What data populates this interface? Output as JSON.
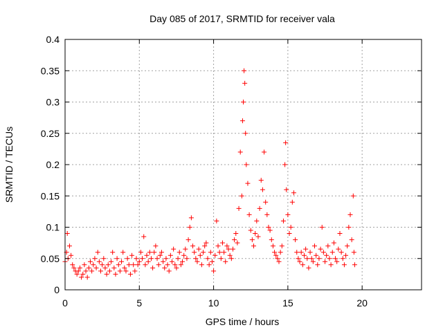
{
  "colors": {
    "series": "#ff0000",
    "axis": "#000000",
    "grid": "#a0a0a0",
    "background": "#ffffff"
  },
  "chart_data": {
    "type": "scatter",
    "title": "Day 085 of 2017, SRMTID for receiver vala",
    "xlabel": "GPS time / hours",
    "ylabel": "SRMTID / TECUs",
    "xlim": [
      0,
      24
    ],
    "ylim": [
      0,
      0.4
    ],
    "grid": true,
    "marker": "+",
    "x_ticks": [
      0,
      5,
      10,
      15,
      20
    ],
    "x_tick_labels": [
      "0",
      "5",
      "10",
      "15",
      "20"
    ],
    "y_ticks": [
      0,
      0.05,
      0.1,
      0.15,
      0.2,
      0.25,
      0.3,
      0.35,
      0.4
    ],
    "y_tick_labels": [
      "0",
      "0.05",
      "0.1",
      "0.15",
      "0.2",
      "0.25",
      "0.3",
      "0.35",
      "0.4"
    ],
    "series": [
      {
        "name": "SRMTID",
        "points": [
          [
            0.0,
            0.045
          ],
          [
            0.1,
            0.06
          ],
          [
            0.15,
            0.09
          ],
          [
            0.2,
            0.05
          ],
          [
            0.3,
            0.07
          ],
          [
            0.4,
            0.055
          ],
          [
            0.5,
            0.04
          ],
          [
            0.6,
            0.035
          ],
          [
            0.7,
            0.03
          ],
          [
            0.8,
            0.025
          ],
          [
            0.9,
            0.03
          ],
          [
            1.0,
            0.035
          ],
          [
            1.1,
            0.02
          ],
          [
            1.2,
            0.025
          ],
          [
            1.3,
            0.04
          ],
          [
            1.4,
            0.03
          ],
          [
            1.5,
            0.02
          ],
          [
            1.6,
            0.035
          ],
          [
            1.7,
            0.045
          ],
          [
            1.8,
            0.03
          ],
          [
            1.9,
            0.04
          ],
          [
            2.0,
            0.05
          ],
          [
            2.1,
            0.035
          ],
          [
            2.2,
            0.06
          ],
          [
            2.3,
            0.045
          ],
          [
            2.4,
            0.03
          ],
          [
            2.5,
            0.04
          ],
          [
            2.6,
            0.05
          ],
          [
            2.7,
            0.035
          ],
          [
            2.8,
            0.025
          ],
          [
            2.9,
            0.04
          ],
          [
            3.0,
            0.03
          ],
          [
            3.1,
            0.045
          ],
          [
            3.2,
            0.06
          ],
          [
            3.3,
            0.035
          ],
          [
            3.4,
            0.025
          ],
          [
            3.5,
            0.05
          ],
          [
            3.6,
            0.04
          ],
          [
            3.7,
            0.03
          ],
          [
            3.8,
            0.045
          ],
          [
            3.9,
            0.06
          ],
          [
            4.0,
            0.035
          ],
          [
            4.1,
            0.03
          ],
          [
            4.2,
            0.05
          ],
          [
            4.3,
            0.04
          ],
          [
            4.4,
            0.025
          ],
          [
            4.5,
            0.055
          ],
          [
            4.6,
            0.04
          ],
          [
            4.7,
            0.03
          ],
          [
            4.8,
            0.05
          ],
          [
            4.9,
            0.04
          ],
          [
            5.0,
            0.045
          ],
          [
            5.1,
            0.06
          ],
          [
            5.2,
            0.05
          ],
          [
            5.3,
            0.085
          ],
          [
            5.4,
            0.04
          ],
          [
            5.5,
            0.055
          ],
          [
            5.6,
            0.045
          ],
          [
            5.7,
            0.06
          ],
          [
            5.8,
            0.05
          ],
          [
            5.9,
            0.035
          ],
          [
            6.0,
            0.06
          ],
          [
            6.1,
            0.07
          ],
          [
            6.2,
            0.05
          ],
          [
            6.3,
            0.04
          ],
          [
            6.4,
            0.055
          ],
          [
            6.5,
            0.06
          ],
          [
            6.6,
            0.045
          ],
          [
            6.7,
            0.035
          ],
          [
            6.8,
            0.05
          ],
          [
            6.9,
            0.04
          ],
          [
            7.0,
            0.03
          ],
          [
            7.1,
            0.055
          ],
          [
            7.2,
            0.045
          ],
          [
            7.3,
            0.065
          ],
          [
            7.4,
            0.04
          ],
          [
            7.5,
            0.035
          ],
          [
            7.6,
            0.05
          ],
          [
            7.7,
            0.06
          ],
          [
            7.8,
            0.04
          ],
          [
            7.9,
            0.045
          ],
          [
            8.0,
            0.055
          ],
          [
            8.1,
            0.065
          ],
          [
            8.2,
            0.05
          ],
          [
            8.3,
            0.08
          ],
          [
            8.4,
            0.1
          ],
          [
            8.5,
            0.115
          ],
          [
            8.6,
            0.07
          ],
          [
            8.7,
            0.06
          ],
          [
            8.8,
            0.05
          ],
          [
            8.9,
            0.045
          ],
          [
            9.0,
            0.065
          ],
          [
            9.1,
            0.055
          ],
          [
            9.2,
            0.04
          ],
          [
            9.3,
            0.06
          ],
          [
            9.4,
            0.07
          ],
          [
            9.5,
            0.075
          ],
          [
            9.6,
            0.05
          ],
          [
            9.7,
            0.04
          ],
          [
            9.8,
            0.06
          ],
          [
            9.9,
            0.045
          ],
          [
            10.0,
            0.03
          ],
          [
            10.1,
            0.055
          ],
          [
            10.2,
            0.11
          ],
          [
            10.3,
            0.07
          ],
          [
            10.4,
            0.06
          ],
          [
            10.5,
            0.05
          ],
          [
            10.6,
            0.075
          ],
          [
            10.7,
            0.06
          ],
          [
            10.8,
            0.045
          ],
          [
            10.9,
            0.07
          ],
          [
            11.0,
            0.065
          ],
          [
            11.1,
            0.055
          ],
          [
            11.2,
            0.05
          ],
          [
            11.3,
            0.065
          ],
          [
            11.4,
            0.08
          ],
          [
            11.5,
            0.09
          ],
          [
            11.6,
            0.075
          ],
          [
            11.7,
            0.13
          ],
          [
            11.8,
            0.22
          ],
          [
            11.9,
            0.15
          ],
          [
            11.95,
            0.27
          ],
          [
            12.0,
            0.3
          ],
          [
            12.05,
            0.35
          ],
          [
            12.1,
            0.33
          ],
          [
            12.15,
            0.25
          ],
          [
            12.2,
            0.2
          ],
          [
            12.3,
            0.17
          ],
          [
            12.4,
            0.12
          ],
          [
            12.5,
            0.095
          ],
          [
            12.6,
            0.08
          ],
          [
            12.7,
            0.07
          ],
          [
            12.8,
            0.09
          ],
          [
            12.9,
            0.11
          ],
          [
            13.0,
            0.085
          ],
          [
            13.1,
            0.13
          ],
          [
            13.2,
            0.175
          ],
          [
            13.3,
            0.16
          ],
          [
            13.4,
            0.22
          ],
          [
            13.5,
            0.14
          ],
          [
            13.6,
            0.12
          ],
          [
            13.7,
            0.1
          ],
          [
            13.8,
            0.095
          ],
          [
            13.9,
            0.08
          ],
          [
            14.0,
            0.07
          ],
          [
            14.1,
            0.06
          ],
          [
            14.2,
            0.055
          ],
          [
            14.3,
            0.05
          ],
          [
            14.4,
            0.045
          ],
          [
            14.5,
            0.06
          ],
          [
            14.6,
            0.07
          ],
          [
            14.7,
            0.11
          ],
          [
            14.8,
            0.2
          ],
          [
            14.85,
            0.235
          ],
          [
            14.9,
            0.16
          ],
          [
            15.0,
            0.12
          ],
          [
            15.1,
            0.09
          ],
          [
            15.2,
            0.1
          ],
          [
            15.3,
            0.14
          ],
          [
            15.4,
            0.155
          ],
          [
            15.5,
            0.08
          ],
          [
            15.6,
            0.06
          ],
          [
            15.7,
            0.05
          ],
          [
            15.8,
            0.045
          ],
          [
            15.9,
            0.06
          ],
          [
            16.0,
            0.04
          ],
          [
            16.1,
            0.055
          ],
          [
            16.2,
            0.065
          ],
          [
            16.3,
            0.05
          ],
          [
            16.4,
            0.035
          ],
          [
            16.5,
            0.06
          ],
          [
            16.6,
            0.05
          ],
          [
            16.7,
            0.045
          ],
          [
            16.8,
            0.07
          ],
          [
            16.9,
            0.055
          ],
          [
            17.0,
            0.04
          ],
          [
            17.1,
            0.05
          ],
          [
            17.2,
            0.065
          ],
          [
            17.3,
            0.1
          ],
          [
            17.4,
            0.06
          ],
          [
            17.5,
            0.045
          ],
          [
            17.6,
            0.055
          ],
          [
            17.7,
            0.07
          ],
          [
            17.8,
            0.05
          ],
          [
            17.9,
            0.04
          ],
          [
            18.0,
            0.06
          ],
          [
            18.1,
            0.075
          ],
          [
            18.2,
            0.05
          ],
          [
            18.3,
            0.045
          ],
          [
            18.4,
            0.065
          ],
          [
            18.5,
            0.09
          ],
          [
            18.6,
            0.06
          ],
          [
            18.7,
            0.05
          ],
          [
            18.8,
            0.04
          ],
          [
            18.9,
            0.055
          ],
          [
            19.0,
            0.07
          ],
          [
            19.1,
            0.1
          ],
          [
            19.2,
            0.12
          ],
          [
            19.3,
            0.08
          ],
          [
            19.4,
            0.15
          ],
          [
            19.45,
            0.06
          ],
          [
            19.5,
            0.04
          ]
        ]
      }
    ]
  }
}
